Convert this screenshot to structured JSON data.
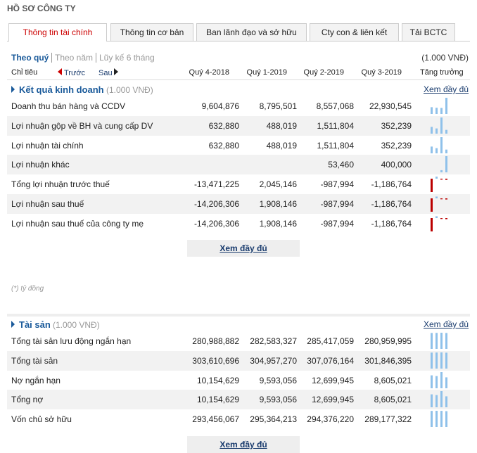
{
  "header": {
    "title": "HỒ SƠ CÔNG TY"
  },
  "tabs": [
    "Thông tin tài chính",
    "Thông tin cơ bản",
    "Ban lãnh đạo và sở hữu",
    "Cty con & liên kết",
    "Tải BCTC"
  ],
  "period_tabs": [
    "Theo quý",
    "Theo năm",
    "Lũy kế 6 tháng"
  ],
  "unit": "(1.000 VNĐ)",
  "nav": {
    "label": "Chỉ tiêu",
    "prev": "Trước",
    "next": "Sau"
  },
  "columns": [
    "Quý 4-2018",
    "Quý 1-2019",
    "Quý 2-2019",
    "Quý 3-2019"
  ],
  "growth_header": "Tăng trưởng",
  "sections": [
    {
      "title": "Kết quả kinh doanh",
      "unit": "(1.000 VNĐ)",
      "link": "Xem đầy đủ",
      "button": "Xem đầy đủ",
      "rows": [
        {
          "label": "Doanh thu bán hàng và CCDV",
          "values": [
            "9,604,876",
            "8,795,501",
            "8,557,068",
            "22,930,545"
          ]
        },
        {
          "label": "Lợi nhuận gộp về BH và cung cấp DV",
          "values": [
            "632,880",
            "488,019",
            "1,511,804",
            "352,239"
          ]
        },
        {
          "label": "Lợi nhuận tài chính",
          "values": [
            "632,880",
            "488,019",
            "1,511,804",
            "352,239"
          ]
        },
        {
          "label": "Lợi nhuận khác",
          "values": [
            null,
            null,
            "53,460",
            "400,000"
          ]
        },
        {
          "label": "Tổng lợi nhuận trước thuế",
          "values": [
            "-13,471,225",
            "2,045,146",
            "-987,994",
            "-1,186,764"
          ]
        },
        {
          "label": "Lợi nhuận sau thuế",
          "values": [
            "-14,206,306",
            "1,908,146",
            "-987,994",
            "-1,186,764"
          ]
        },
        {
          "label": "Lợi nhuận sau thuế của công ty mẹ",
          "values": [
            "-14,206,306",
            "1,908,146",
            "-987,994",
            "-1,186,764"
          ]
        }
      ]
    },
    {
      "title": "Tài sản",
      "unit": "(1.000 VNĐ)",
      "link": "Xem đầy đủ",
      "button": "Xem đầy đủ",
      "rows": [
        {
          "label": "Tổng tài sản lưu động ngắn hạn",
          "values": [
            "280,988,882",
            "282,583,327",
            "285,417,059",
            "280,959,995"
          ]
        },
        {
          "label": "Tổng tài sản",
          "values": [
            "303,610,696",
            "304,957,270",
            "307,076,164",
            "301,846,395"
          ]
        },
        {
          "label": "Nợ ngắn hạn",
          "values": [
            "10,154,629",
            "9,593,056",
            "12,699,945",
            "8,605,021"
          ]
        },
        {
          "label": "Tổng nợ",
          "values": [
            "10,154,629",
            "9,593,056",
            "12,699,945",
            "8,605,021"
          ]
        },
        {
          "label": "Vốn chủ sở hữu",
          "values": [
            "293,456,067",
            "295,364,213",
            "294,376,220",
            "289,177,322"
          ]
        }
      ]
    }
  ],
  "note": "(*) tỷ đồng"
}
